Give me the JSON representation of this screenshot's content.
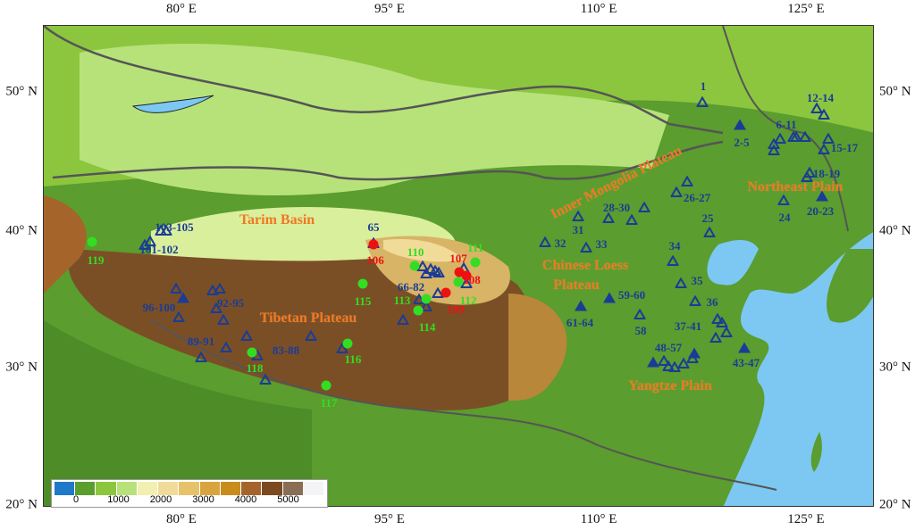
{
  "axes": {
    "lon_labels": [
      "80° E",
      "95° E",
      "110° E",
      "125° E"
    ],
    "lat_labels": [
      "50° N",
      "40° N",
      "30° N",
      "20° N"
    ]
  },
  "regions": [
    "Tarim Basin",
    "Tibetan Plateau",
    "Inner Mongolia Plateau",
    "Chinese Loess",
    "Plateau",
    "Northeast Plain",
    "Yangtze Plain"
  ],
  "colors": {
    "open_triangle": "#1a3c96",
    "filled_triangle": "#1a3c96",
    "red_site": "#ee1111",
    "green_site": "#33dd22",
    "region_label": "#f07820",
    "sea": "#7cc8f2",
    "lowland": "#5b9d2e"
  },
  "site_labels": [
    {
      "text": "1",
      "color": "blue"
    },
    {
      "text": "2-5",
      "color": "blue"
    },
    {
      "text": "6-11",
      "color": "blue"
    },
    {
      "text": "12-14",
      "color": "blue"
    },
    {
      "text": "15-17",
      "color": "blue"
    },
    {
      "text": "18-19",
      "color": "blue"
    },
    {
      "text": "20-23",
      "color": "blue"
    },
    {
      "text": "24",
      "color": "blue"
    },
    {
      "text": "25",
      "color": "blue"
    },
    {
      "text": "26-27",
      "color": "blue"
    },
    {
      "text": "28-30",
      "color": "blue"
    },
    {
      "text": "31",
      "color": "blue"
    },
    {
      "text": "32",
      "color": "blue"
    },
    {
      "text": "33",
      "color": "blue"
    },
    {
      "text": "34",
      "color": "blue"
    },
    {
      "text": "35",
      "color": "blue"
    },
    {
      "text": "36",
      "color": "blue"
    },
    {
      "text": "37-41",
      "color": "blue"
    },
    {
      "text": "43-47",
      "color": "blue"
    },
    {
      "text": "48-57",
      "color": "blue"
    },
    {
      "text": "58",
      "color": "blue"
    },
    {
      "text": "59-60",
      "color": "blue"
    },
    {
      "text": "61-64",
      "color": "blue"
    },
    {
      "text": "65",
      "color": "blue"
    },
    {
      "text": "66-82",
      "color": "blue"
    },
    {
      "text": "83-88",
      "color": "blue"
    },
    {
      "text": "89-91",
      "color": "blue"
    },
    {
      "text": "92-95",
      "color": "blue"
    },
    {
      "text": "96-100",
      "color": "blue"
    },
    {
      "text": "101-102",
      "color": "blue"
    },
    {
      "text": "103-105",
      "color": "blue"
    },
    {
      "text": "106",
      "color": "red"
    },
    {
      "text": "107",
      "color": "red"
    },
    {
      "text": "108",
      "color": "red"
    },
    {
      "text": "109",
      "color": "red"
    },
    {
      "text": "110",
      "color": "green"
    },
    {
      "text": "111",
      "color": "green"
    },
    {
      "text": "112",
      "color": "green"
    },
    {
      "text": "113",
      "color": "green"
    },
    {
      "text": "114",
      "color": "green"
    },
    {
      "text": "115",
      "color": "green"
    },
    {
      "text": "116",
      "color": "green"
    },
    {
      "text": "117",
      "color": "green"
    },
    {
      "text": "118",
      "color": "green"
    },
    {
      "text": "119",
      "color": "green"
    }
  ],
  "legend": {
    "ticks": [
      "0",
      "1000",
      "2000",
      "3000",
      "4000",
      "5000"
    ],
    "colors": [
      "#1f78c8",
      "#5a9e2c",
      "#8cc63e",
      "#b7e27a",
      "#f3efb2",
      "#f0dc98",
      "#e6c36a",
      "#d9a43e",
      "#c98c1c",
      "#a5652a",
      "#7b4a20",
      "#8a6d55",
      "#f4f4f6"
    ]
  }
}
